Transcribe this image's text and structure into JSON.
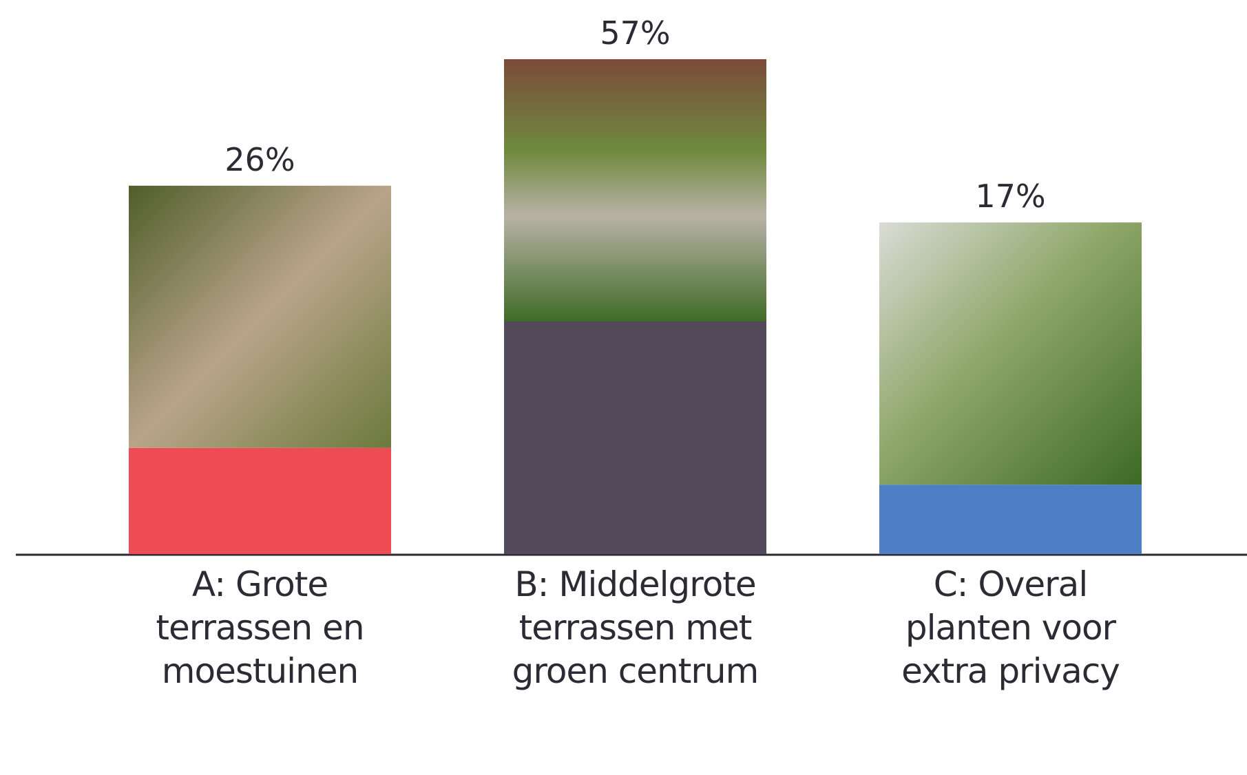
{
  "chart_data": {
    "type": "bar",
    "categories": [
      "A: Grote terrassen en moestuinen",
      "B: Middelgrote terrassen met groen centrum",
      "C: Overal planten voor extra privacy"
    ],
    "values": [
      26,
      57,
      17
    ],
    "value_labels": [
      "26%",
      "57%",
      "17%"
    ],
    "colors": [
      "#ef4b55",
      "#524a5a",
      "#4e7fc4"
    ]
  }
}
